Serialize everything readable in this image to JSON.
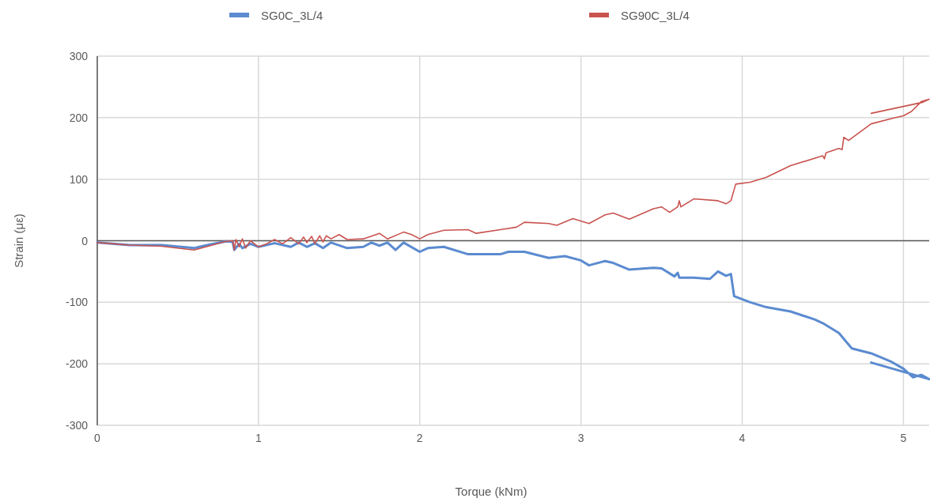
{
  "chart_data": {
    "type": "line",
    "xlabel": "Torque (kNm)",
    "ylabel": "Strain (με)",
    "xlim": [
      0,
      5.16
    ],
    "xticks": [
      0,
      1,
      2,
      3,
      4,
      5
    ],
    "ylim": [
      -300,
      300
    ],
    "yticks": [
      -300,
      -200,
      -100,
      0,
      100,
      200,
      300
    ],
    "grid": true,
    "legend": "top",
    "marker": "none",
    "line_style": "solid",
    "series": [
      {
        "name": "SG0C_3L/4",
        "color": "#5b8bd0",
        "x": [
          0,
          0.2,
          0.4,
          0.6,
          0.7,
          0.8,
          0.84,
          0.85,
          0.88,
          0.9,
          0.95,
          1.0,
          1.1,
          1.2,
          1.25,
          1.3,
          1.35,
          1.4,
          1.45,
          1.55,
          1.65,
          1.7,
          1.75,
          1.8,
          1.85,
          1.9,
          2.0,
          2.05,
          2.15,
          2.3,
          2.5,
          2.55,
          2.65,
          2.8,
          2.9,
          3.0,
          3.05,
          3.15,
          3.2,
          3.3,
          3.45,
          3.5,
          3.58,
          3.6,
          3.61,
          3.7,
          3.8,
          3.85,
          3.9,
          3.93,
          3.95,
          4.05,
          4.15,
          4.3,
          4.45,
          4.5,
          4.6,
          4.68,
          4.8,
          4.92,
          5.0,
          5.06,
          5.11,
          5.16,
          4.8
        ],
        "values": [
          -3,
          -7,
          -7,
          -12,
          -6,
          -1,
          -2,
          -15,
          -5,
          -12,
          -5,
          -10,
          -4,
          -10,
          -3,
          -10,
          -4,
          -12,
          -3,
          -12,
          -10,
          -3,
          -8,
          -3,
          -15,
          -3,
          -18,
          -12,
          -10,
          -22,
          -22,
          -18,
          -18,
          -28,
          -25,
          -32,
          -40,
          -33,
          -36,
          -47,
          -44,
          -45,
          -58,
          -52,
          -60,
          -60,
          -62,
          -50,
          -57,
          -54,
          -90,
          -100,
          -108,
          -115,
          -128,
          -134,
          -150,
          -175,
          -183,
          -196,
          -208,
          -222,
          -218,
          -225,
          -198
        ]
      },
      {
        "name": "SG90C_3L/4",
        "color": "#c9534f",
        "x": [
          0,
          0.2,
          0.4,
          0.6,
          0.7,
          0.8,
          0.84,
          0.85,
          0.86,
          0.88,
          0.9,
          0.92,
          0.95,
          1.0,
          1.05,
          1.1,
          1.15,
          1.2,
          1.25,
          1.28,
          1.3,
          1.33,
          1.35,
          1.38,
          1.4,
          1.42,
          1.45,
          1.5,
          1.55,
          1.65,
          1.75,
          1.8,
          1.9,
          1.95,
          2.0,
          2.05,
          2.15,
          2.3,
          2.35,
          2.5,
          2.6,
          2.65,
          2.8,
          2.85,
          2.95,
          3.05,
          3.15,
          3.2,
          3.3,
          3.45,
          3.5,
          3.55,
          3.6,
          3.61,
          3.62,
          3.7,
          3.85,
          3.9,
          3.93,
          3.96,
          4.05,
          4.15,
          4.3,
          4.5,
          4.51,
          4.52,
          4.6,
          4.62,
          4.63,
          4.66,
          4.8,
          4.95,
          5.0,
          5.05,
          5.11,
          5.16,
          5.12,
          4.8
        ],
        "values": [
          -3,
          -7,
          -9,
          -15,
          -8,
          -1,
          0,
          -15,
          2,
          -10,
          3,
          -12,
          0,
          -10,
          -5,
          2,
          -5,
          5,
          -5,
          6,
          -3,
          7,
          -5,
          8,
          -2,
          8,
          3,
          10,
          2,
          3,
          12,
          3,
          14,
          10,
          3,
          10,
          17,
          18,
          12,
          18,
          22,
          30,
          28,
          25,
          36,
          28,
          42,
          45,
          35,
          52,
          55,
          46,
          55,
          65,
          55,
          68,
          65,
          60,
          65,
          92,
          95,
          103,
          122,
          138,
          133,
          143,
          150,
          148,
          168,
          163,
          190,
          200,
          203,
          210,
          226,
          230,
          225,
          207
        ]
      }
    ]
  }
}
